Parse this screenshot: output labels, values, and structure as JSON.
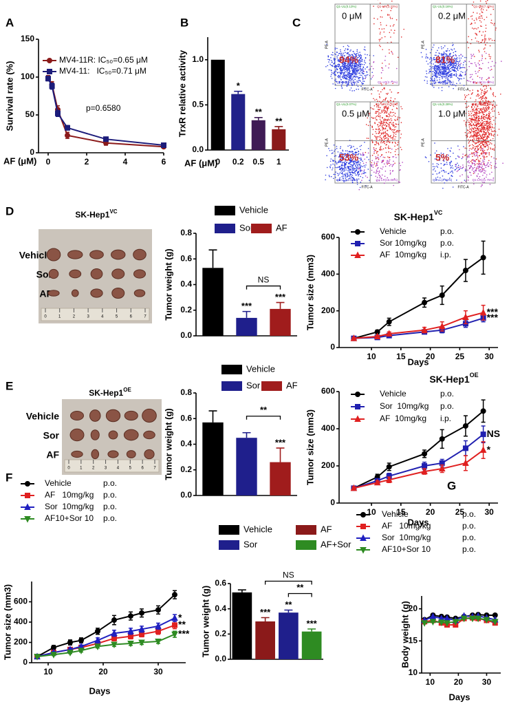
{
  "figure": {
    "panels": [
      "A",
      "B",
      "C",
      "D",
      "E",
      "F",
      "G"
    ],
    "flow": [
      {
        "dose": "0 μM",
        "pct": "94%",
        "ul": "Q1-UL(0.13%)",
        "ur": "Q1-UR(3.22%)",
        "ll": "Q1-LL(93.94%)",
        "lr": "Q1-LR(2.71%)",
        "ylabel": "PE-A",
        "xlabel": "FITC-A"
      },
      {
        "dose": "0.2 μM",
        "pct": "81%",
        "ul": "Q1-UL(0.16%)",
        "ur": "Q1-UR(7.40%)",
        "ll": "Q1-LL(80.83%)",
        "lr": "Q1-LR(11.63%)",
        "ylabel": "PE-A",
        "xlabel": "FITC-A"
      },
      {
        "dose": "0.5 μM",
        "pct": "53%",
        "ul": "Q1-UL(0.07%)",
        "ur": "Q1-UR(31.11%)",
        "ll": "Q1-LL(52.66%)",
        "lr": "Q1-LR(16.06%)",
        "ylabel": "PE-A",
        "xlabel": "FITC-A"
      },
      {
        "dose": "1.0 μM",
        "pct": "5%",
        "ul": "Q1-UL(0.28%)",
        "ur": "Q1-UR(73.04%)",
        "ll": "Q1-LL(4.96%)",
        "lr": "Q1-LR(21.75%)",
        "ylabel": "PE-A",
        "xlabel": "FITC-A"
      }
    ],
    "photos": [
      {
        "title": "SK-Hep1",
        "sup": "VC",
        "rows": [
          "Vehicle",
          "Sor",
          "AF"
        ],
        "ruler": [
          "0",
          "1",
          "2",
          "3",
          "4",
          "5",
          "6",
          "7"
        ]
      },
      {
        "title": "SK-Hep1",
        "sup": "OE",
        "rows": [
          "Vehicle",
          "Sor",
          "AF"
        ],
        "ruler": [
          "0",
          "1",
          "2",
          "3",
          "4",
          "5",
          "6",
          "7"
        ]
      }
    ]
  },
  "chart_data": [
    {
      "type": "line",
      "xlabel": "AF (μM)",
      "ylabel": "Survival rate (%)",
      "note": "p=0.6580",
      "x": [
        0,
        0.2,
        0.5,
        1,
        3,
        6
      ],
      "xlim": [
        -0.5,
        6
      ],
      "xticks": [
        0,
        2,
        4,
        6
      ],
      "ylim": [
        0,
        150
      ],
      "yticks": [
        0,
        50,
        100,
        150
      ],
      "series": [
        {
          "name": "MV4-11R: IC₅₀=0.65 μM",
          "color": "#8b1a1a",
          "marker": "circle",
          "values": [
            99,
            90,
            57,
            23,
            13,
            8
          ],
          "errors": [
            3,
            4,
            5,
            4,
            3,
            2
          ]
        },
        {
          "name": "MV4-11:   IC₅₀=0.71 μM",
          "color": "#1c1c7a",
          "marker": "square",
          "values": [
            98,
            88,
            52,
            33,
            18,
            10
          ],
          "errors": [
            3,
            4,
            4,
            3,
            2,
            2
          ]
        }
      ]
    },
    {
      "type": "bar",
      "xlabel": "AF (μM)",
      "ylabel": "TrxR relative activity",
      "legend": false,
      "categories": [
        "0",
        "0.2",
        "0.5",
        "1"
      ],
      "values": [
        1.0,
        0.62,
        0.33,
        0.23
      ],
      "errors": [
        0,
        0.03,
        0.03,
        0.03
      ],
      "colors": [
        "#000000",
        "#22228a",
        "#3f1b55",
        "#8b1a1a"
      ],
      "significance": [
        null,
        "*",
        "**",
        "**"
      ],
      "ylim": [
        0,
        1.25
      ],
      "yticks": [
        {
          "value": 0,
          "label": "0.0"
        },
        0.5,
        {
          "value": 1,
          "label": "1.0"
        }
      ]
    },
    {
      "type": "bar",
      "ylabel": "Tumor weight (g)",
      "legend": true,
      "categories": [
        "Vehicle",
        "Sor",
        "AF"
      ],
      "values": [
        0.53,
        0.14,
        0.21
      ],
      "errors": [
        0.14,
        0.05,
        0.05
      ],
      "colors": [
        "#000000",
        "#1f1f8c",
        "#a01c1c"
      ],
      "significance": [
        null,
        "***",
        "***"
      ],
      "brackets": [
        {
          "between": [
            "Sor",
            "AF"
          ],
          "label": "NS"
        }
      ],
      "ylim": [
        0,
        0.8
      ],
      "yticks": [
        {
          "value": 0,
          "label": "0.0"
        },
        0.2,
        0.4,
        0.6,
        0.8
      ]
    },
    {
      "type": "line",
      "title": "SK-Hep1",
      "title_sup": "VC",
      "xlabel": "Days",
      "ylabel": "Tumor size (mm3)",
      "x": [
        7,
        11,
        13,
        19,
        22,
        26,
        29
      ],
      "xlim": [
        4.5,
        31.5
      ],
      "xticks": [
        10,
        15,
        20,
        25,
        30
      ],
      "ylim": [
        0,
        600
      ],
      "yticks": [
        0,
        200,
        400,
        600
      ],
      "series": [
        {
          "name": "Vehicle",
          "route": "p.o.",
          "color": "#000000",
          "marker": "circle",
          "values": [
            50,
            85,
            140,
            245,
            285,
            420,
            490
          ],
          "errors": [
            10,
            10,
            20,
            25,
            50,
            60,
            90
          ]
        },
        {
          "name": "Sor 10mg/kg",
          "route": "p.o.",
          "color": "#2020b0",
          "marker": "square",
          "values": [
            50,
            55,
            65,
            85,
            95,
            130,
            160
          ],
          "errors": [
            5,
            5,
            10,
            10,
            15,
            20,
            20
          ],
          "end_label": "***"
        },
        {
          "name": "AF  10mg/kg",
          "route": "i.p.",
          "color": "#e02020",
          "marker": "triangle",
          "values": [
            50,
            60,
            75,
            95,
            115,
            165,
            190
          ],
          "errors": [
            5,
            5,
            10,
            15,
            25,
            35,
            40
          ],
          "end_label": "***"
        }
      ]
    },
    {
      "type": "bar",
      "ylabel": "Tumor weight (g)",
      "legend": true,
      "categories": [
        "Vehicle",
        "Sor",
        "AF"
      ],
      "values": [
        0.57,
        0.45,
        0.26
      ],
      "errors": [
        0.09,
        0.04,
        0.11
      ],
      "colors": [
        "#000000",
        "#1f1f8c",
        "#a01c1c"
      ],
      "significance": [
        null,
        null,
        "***"
      ],
      "brackets": [
        {
          "between": [
            "Sor",
            "AF"
          ],
          "label": "**"
        }
      ],
      "ylim": [
        0,
        0.8
      ],
      "yticks": [
        {
          "value": 0,
          "label": "0.0"
        },
        0.2,
        0.4,
        0.6,
        0.8
      ]
    },
    {
      "type": "line",
      "title": "SK-Hep1",
      "title_sup": "OE",
      "xlabel": "Days",
      "ylabel": "Tumor size (mm3)",
      "x": [
        7,
        11,
        13,
        19,
        22,
        26,
        29
      ],
      "xlim": [
        4.5,
        31.5
      ],
      "xticks": [
        10,
        15,
        20,
        25,
        30
      ],
      "ylim": [
        0,
        600
      ],
      "yticks": [
        0,
        200,
        400,
        600
      ],
      "series": [
        {
          "name": "Vehicle",
          "route": "p.o.",
          "color": "#000000",
          "marker": "circle",
          "values": [
            80,
            140,
            195,
            265,
            345,
            415,
            495
          ],
          "errors": [
            10,
            15,
            20,
            20,
            50,
            55,
            60
          ]
        },
        {
          "name": "Sor  10mg/kg",
          "route": "p.o.",
          "color": "#2020b0",
          "marker": "square",
          "values": [
            80,
            120,
            145,
            200,
            215,
            295,
            370
          ],
          "errors": [
            8,
            10,
            15,
            20,
            20,
            40,
            45
          ],
          "end_label": "NS"
        },
        {
          "name": "AF  10mg/kg",
          "route": "i.p.",
          "color": "#e02020",
          "marker": "triangle",
          "values": [
            80,
            110,
            125,
            170,
            185,
            215,
            285
          ],
          "errors": [
            8,
            10,
            15,
            15,
            20,
            40,
            45
          ],
          "end_label": "*"
        }
      ]
    },
    {
      "type": "line",
      "xlabel": "Days",
      "ylabel": "Tumor size (mm3)",
      "x": [
        8,
        11,
        14,
        16,
        19,
        22,
        25,
        27,
        30,
        33
      ],
      "xlim": [
        7,
        35
      ],
      "xticks": [
        10,
        20,
        30
      ],
      "ylim": [
        0,
        800
      ],
      "yticks": [
        0,
        200,
        400,
        600
      ],
      "series": [
        {
          "name": "Vehicle",
          "route": "p.o.",
          "color": "#000000",
          "marker": "circle",
          "values": [
            60,
            150,
            200,
            220,
            310,
            420,
            460,
            490,
            520,
            670
          ],
          "errors": [
            10,
            20,
            25,
            25,
            30,
            45,
            40,
            40,
            40,
            40
          ]
        },
        {
          "name": "AF   10mg/kg",
          "route": "p.o.",
          "color": "#e02020",
          "marker": "square",
          "values": [
            60,
            100,
            130,
            150,
            190,
            240,
            260,
            280,
            310,
            370
          ],
          "errors": [
            8,
            10,
            15,
            15,
            20,
            25,
            25,
            25,
            30,
            35
          ],
          "end_label": "**"
        },
        {
          "name": "Sor  10mg/kg",
          "route": "p.o.",
          "color": "#2020c0",
          "marker": "triangle",
          "values": [
            60,
            100,
            130,
            160,
            220,
            290,
            310,
            330,
            360,
            440
          ],
          "errors": [
            8,
            10,
            15,
            15,
            25,
            30,
            30,
            30,
            30,
            35
          ],
          "end_label": "*"
        },
        {
          "name": "AF10+Sor 10",
          "route": "p.o.",
          "color": "#2e8b22",
          "marker": "dtriangle",
          "values": [
            60,
            80,
            100,
            120,
            160,
            180,
            190,
            200,
            210,
            280
          ],
          "errors": [
            8,
            10,
            10,
            15,
            15,
            20,
            20,
            20,
            20,
            30
          ],
          "end_label": "***"
        }
      ]
    },
    {
      "type": "bar",
      "ylabel": "Tumor weight (g)",
      "legend": true,
      "categories": [
        "Vehicle",
        "AF",
        "Sor",
        "AF+Sor"
      ],
      "values": [
        0.53,
        0.3,
        0.37,
        0.22
      ],
      "errors": [
        0.02,
        0.03,
        0.02,
        0.02
      ],
      "colors": [
        "#000000",
        "#8b1a1a",
        "#1f1f8c",
        "#2e8b22"
      ],
      "significance": [
        null,
        "***",
        "**",
        "***"
      ],
      "brackets": [
        {
          "between": [
            "Sor",
            "AF+Sor"
          ],
          "label": "**"
        },
        {
          "between": [
            "AF",
            "AF+Sor"
          ],
          "label": "NS"
        }
      ],
      "ylim": [
        0,
        0.6
      ],
      "yticks": [
        {
          "value": 0,
          "label": "0.0"
        },
        0.2,
        0.4,
        0.6
      ]
    },
    {
      "type": "line",
      "xlabel": "Days",
      "ylabel": "Body weight (g)",
      "x": [
        8,
        11,
        14,
        16,
        19,
        22,
        25,
        27,
        30,
        33
      ],
      "xlim": [
        7,
        35
      ],
      "xticks": [
        10,
        20,
        30
      ],
      "ylim": [
        10,
        22
      ],
      "yticks": [
        10,
        15,
        20
      ],
      "series": [
        {
          "name": "Vehicle",
          "route": "p.o.",
          "color": "#000000",
          "marker": "circle",
          "values": [
            18.3,
            19,
            18.8,
            18.7,
            18.5,
            18.8,
            19,
            19.1,
            19,
            19
          ]
        },
        {
          "name": "AF   10mg/kg",
          "route": "p.o.",
          "color": "#e02020",
          "marker": "square",
          "values": [
            18,
            18.2,
            17.8,
            17.5,
            17.5,
            18.5,
            18.6,
            18.5,
            18.2,
            17.8
          ]
        },
        {
          "name": "Sor  10mg/kg",
          "route": "p.o.",
          "color": "#2020c0",
          "marker": "triangle",
          "values": [
            18.2,
            18.8,
            18.5,
            18.5,
            18.2,
            18.9,
            18.8,
            18.9,
            18.6,
            18.3
          ]
        },
        {
          "name": "AF10+Sor 10",
          "route": "p.o.",
          "color": "#2e8b22",
          "marker": "dtriangle",
          "values": [
            17.8,
            18,
            17.9,
            17.8,
            18,
            18.5,
            18.5,
            18.5,
            18.3,
            18
          ]
        }
      ]
    }
  ]
}
